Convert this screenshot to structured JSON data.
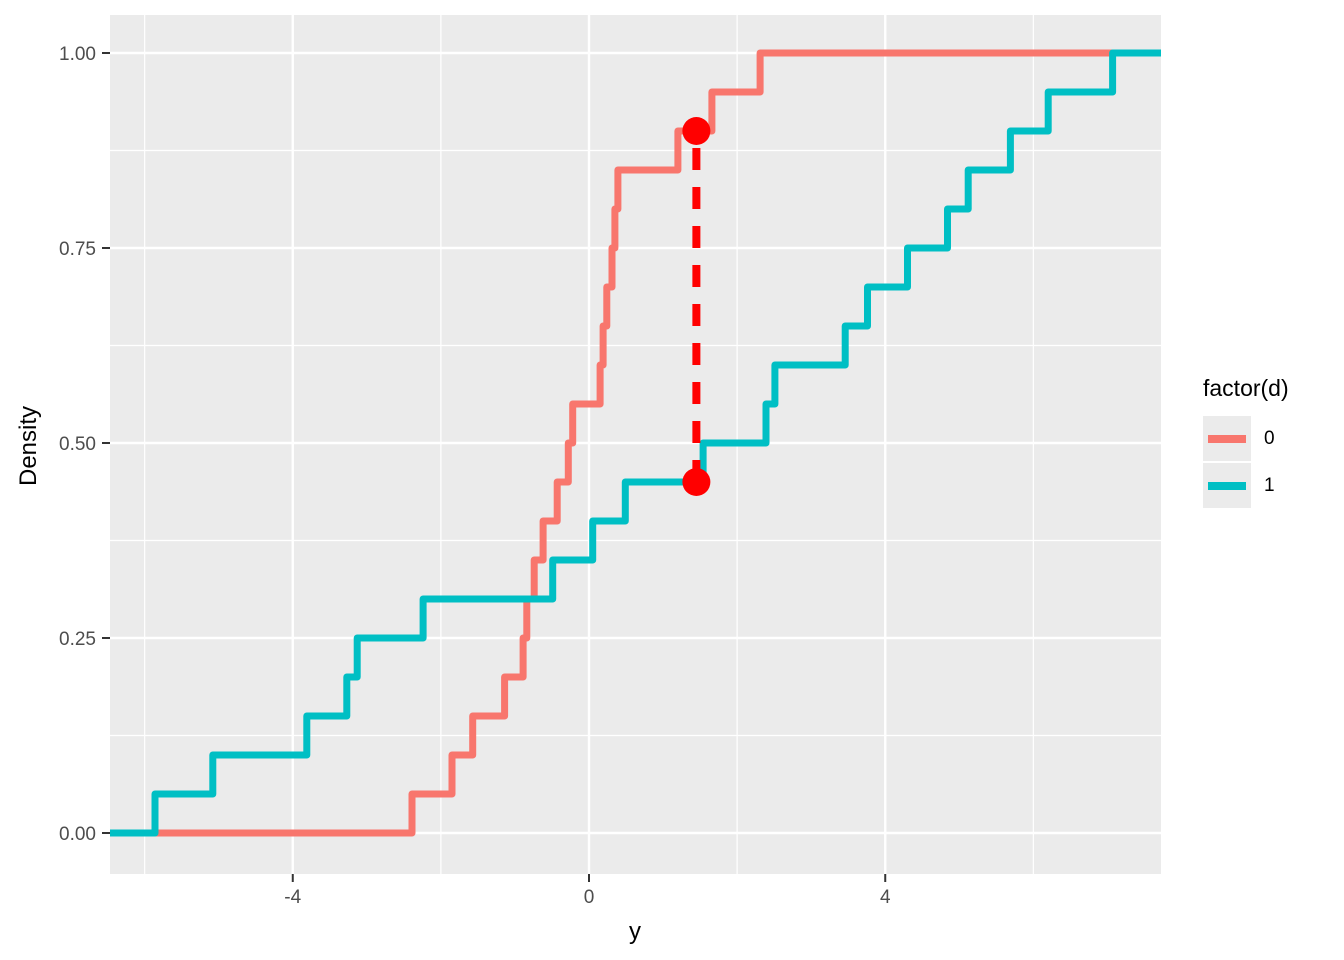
{
  "colors": {
    "panel_background": "#ebebeb",
    "grid": "#ffffff",
    "tick_text": "#4d4d4d",
    "axis_title_text": "#000000",
    "tick_mark": "#333333",
    "series_0": "#F8766D",
    "series_1": "#00BFC4",
    "annotation": "#FF0000"
  },
  "legend": {
    "title": "factor(d)",
    "entries": [
      {
        "label": "0",
        "color": "#F8766D"
      },
      {
        "label": "1",
        "color": "#00BFC4"
      }
    ]
  },
  "chart_data": {
    "type": "line",
    "subtype": "ecdf-step",
    "title": "",
    "xlabel": "y",
    "ylabel": "Density",
    "xlim": [
      -6.47,
      7.72
    ],
    "ylim": [
      -0.05,
      1.05
    ],
    "grid": true,
    "legend_position": "right",
    "legend_title": "factor(d)",
    "x_major_ticks": [
      -4,
      0,
      4
    ],
    "x_tick_labels": [
      "-4",
      "0",
      "4"
    ],
    "x_minor_ticks": [
      -6,
      -2,
      2,
      6
    ],
    "y_major_ticks": [
      0,
      0.25,
      0.5,
      0.75,
      1
    ],
    "y_tick_labels": [
      "0.00",
      "0.25",
      "0.50",
      "0.75",
      "1.00"
    ],
    "y_minor_ticks": [
      0.125,
      0.375,
      0.625,
      0.875
    ],
    "series": [
      {
        "name": "0",
        "color": "#F8766D",
        "x": [
          -2.39,
          -1.85,
          -1.57,
          -1.14,
          -0.89,
          -0.84,
          -0.74,
          -0.62,
          -0.43,
          -0.28,
          -0.22,
          0.15,
          0.19,
          0.24,
          0.31,
          0.35,
          0.39,
          1.2,
          1.66,
          2.31
        ],
        "y": [
          0.05,
          0.1,
          0.15,
          0.2,
          0.25,
          0.3,
          0.35,
          0.4,
          0.45,
          0.5,
          0.55,
          0.6,
          0.65,
          0.7,
          0.75,
          0.8,
          0.85,
          0.9,
          0.95,
          1.0
        ]
      },
      {
        "name": "1",
        "color": "#00BFC4",
        "x": [
          -5.86,
          -5.08,
          -3.81,
          -3.27,
          -3.13,
          -2.24,
          -0.49,
          0.05,
          0.49,
          1.54,
          2.39,
          2.51,
          3.46,
          3.76,
          4.3,
          4.84,
          5.12,
          5.69,
          6.2,
          7.07
        ],
        "y": [
          0.05,
          0.1,
          0.15,
          0.2,
          0.25,
          0.3,
          0.35,
          0.4,
          0.45,
          0.5,
          0.55,
          0.6,
          0.65,
          0.7,
          0.75,
          0.8,
          0.85,
          0.9,
          0.95,
          1.0
        ]
      }
    ],
    "annotation": {
      "type": "dashed-vertical-segment-with-points",
      "color": "#FF0000",
      "x": 1.45,
      "y_lower": 0.45,
      "y_upper": 0.9,
      "points": [
        {
          "x": 1.45,
          "y": 0.45
        },
        {
          "x": 1.45,
          "y": 0.9
        }
      ]
    }
  }
}
